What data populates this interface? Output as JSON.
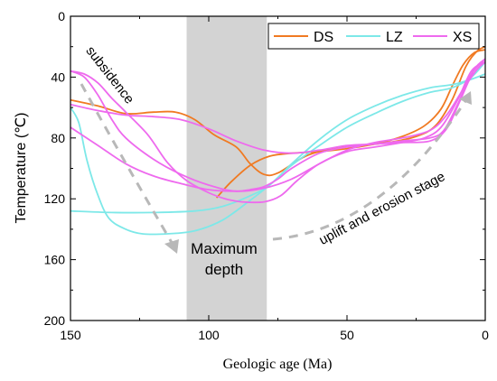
{
  "chart_data": {
    "type": "line",
    "xlabel": "Geologic age (Ma)",
    "ylabel": "Temperature (℃)",
    "xlim": [
      150,
      0
    ],
    "ylim": [
      0,
      200
    ],
    "y_inverted": true,
    "x_reversed": true,
    "x_ticks": [
      150,
      100,
      50,
      0
    ],
    "y_ticks": [
      0,
      40,
      80,
      120,
      160,
      200
    ],
    "grid": false,
    "legend_position": "top-right",
    "shaded_interval": {
      "from": 108,
      "to": 79,
      "color": "#d3d3d3"
    },
    "colors": {
      "DS": "#f07a22",
      "LZ": "#7de8e8",
      "XS": "#ee6aee",
      "arrow": "#b8b8b8"
    },
    "series": [
      {
        "name": "DS",
        "curves": [
          {
            "x": [
              150,
              140,
              130,
              120,
              112,
              105,
              98,
              90,
              85,
              80,
              75,
              65,
              55,
              45,
              35,
              25,
              18,
              12,
              7,
              3,
              0
            ],
            "y": [
              55,
              59,
              64,
              63,
              63,
              68,
              78,
              86,
              97,
              104,
              103,
              92,
              87,
              85,
              83,
              79,
              72,
              55,
              33,
              23,
              20
            ]
          },
          {
            "x": [
              97,
              92,
              85,
              78,
              70,
              60,
              50,
              40,
              30,
              22,
              16,
              12,
              8,
              4,
              0
            ],
            "y": [
              119,
              109,
              98,
              92,
              90,
              89,
              87,
              84,
              79,
              72,
              61,
              46,
              32,
              24,
              22
            ]
          }
        ]
      },
      {
        "name": "LZ",
        "curves": [
          {
            "x": [
              150,
              147,
              144,
              140,
              136,
              130,
              124,
              115,
              105,
              95,
              85,
              78,
              70,
              60,
              50,
              40,
              30,
              20,
              12,
              5,
              0
            ],
            "y": [
              60,
              70,
              95,
              118,
              133,
              140,
              143,
              143,
              141,
              134,
              121,
              111,
              98,
              85,
              73,
              64,
              56,
              50,
              47,
              40,
              30
            ]
          },
          {
            "x": [
              150,
              135,
              120,
              105,
              95,
              85,
              78,
              70,
              60,
              50,
              40,
              30,
              20,
              12,
              6,
              0
            ],
            "y": [
              128,
              129,
              129,
              128,
              125,
              118,
              111,
              97,
              81,
              68,
              59,
              52,
              47,
              45,
              42,
              38
            ]
          }
        ]
      },
      {
        "name": "XS",
        "curves": [
          {
            "x": [
              150,
              145,
              140,
              135,
              130,
              120,
              110,
              100,
              90,
              80,
              70,
              60,
              50,
              40,
              30,
              20,
              14,
              8,
              3,
              0
            ],
            "y": [
              36,
              40,
              52,
              68,
              80,
              94,
              104,
              111,
              115,
              113,
              107,
              97,
              88,
              83,
              80,
              75,
              65,
              48,
              35,
              30
            ]
          },
          {
            "x": [
              150,
              140,
              130,
              120,
              110,
              100,
              90,
              85,
              80,
              75,
              70,
              60,
              50,
              40,
              30,
              20,
              15,
              10,
              5,
              0
            ],
            "y": [
              73,
              85,
              97,
              105,
              110,
              114,
              115,
              114,
              112,
              107,
              100,
              90,
              86,
              84,
              82,
              80,
              75,
              58,
              38,
              28
            ]
          },
          {
            "x": [
              150,
              140,
              130,
              120,
              110,
              100,
              90,
              80,
              70,
              60,
              50,
              40,
              30,
              20,
              14,
              9,
              4,
              0
            ],
            "y": [
              58,
              62,
              65,
              66,
              68,
              74,
              82,
              88,
              90,
              88,
              85,
              84,
              83,
              82,
              74,
              55,
              35,
              28
            ]
          },
          {
            "x": [
              150,
              145,
              140,
              135,
              130,
              122,
              115,
              108,
              100,
              94,
              88,
              80,
              74,
              68,
              60,
              50,
              40,
              30,
              22,
              16,
              10,
              5,
              0
            ],
            "y": [
              36,
              38,
              44,
              54,
              63,
              78,
              96,
              108,
              116,
              120,
              122,
              122,
              118,
              108,
              97,
              89,
              86,
              83,
              80,
              73,
              55,
              36,
              30
            ]
          }
        ]
      }
    ],
    "annotations": {
      "subsidence": "subsidence",
      "maximum_depth_line1": "Maximum",
      "maximum_depth_line2": "depth",
      "uplift": "uplift and erosion stage"
    }
  }
}
